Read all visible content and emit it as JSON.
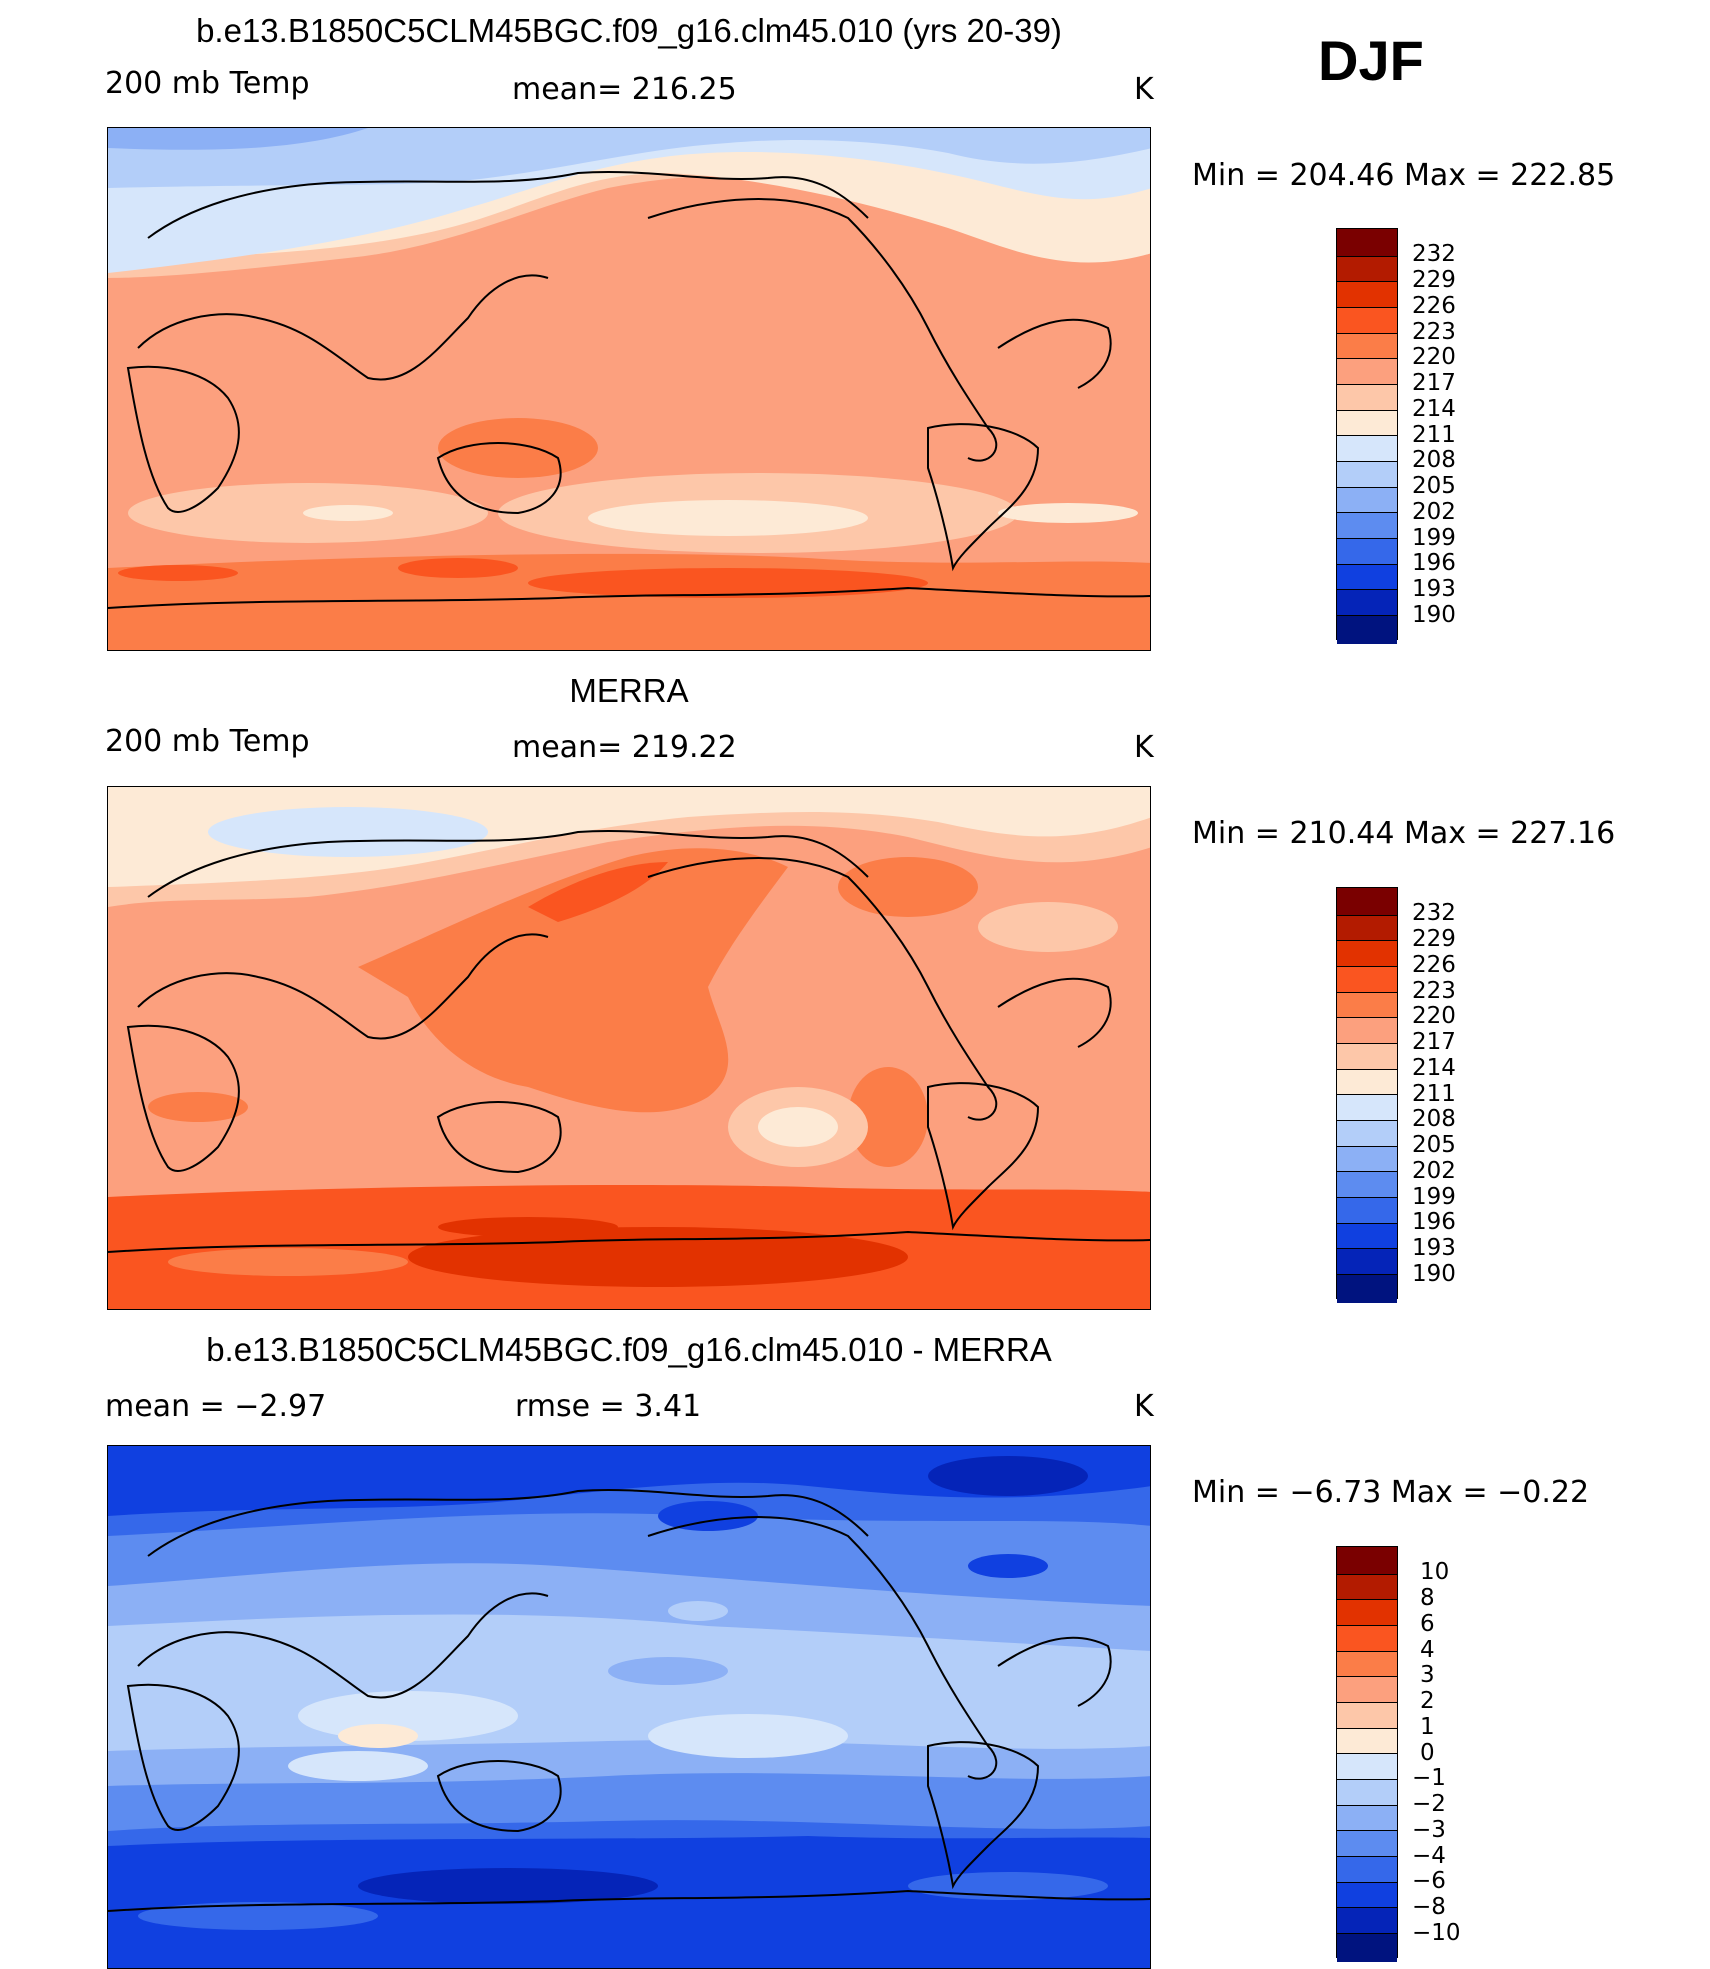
{
  "season": "DJF",
  "colors": {
    "c232": "#7a0000",
    "c229": "#b31b00",
    "c226": "#e23200",
    "c223": "#fa5520",
    "c220": "#fb7d48",
    "c217": "#fca07e",
    "c214": "#fdc7a9",
    "c211": "#fdead6",
    "c208": "#d6e6fb",
    "c205": "#b3cef9",
    "c202": "#8cb0f5",
    "c199": "#5d8cf0",
    "c196": "#3568ea",
    "c193": "#1040e0",
    "c190": "#0524b8",
    "c0": "#00137f"
  },
  "panels": [
    {
      "title": "b.e13.B1850C5CLM45BGC.f09_g16.clm45.010 (yrs 20-39)",
      "left_label": "200 mb Temp",
      "center_label": "mean= 216.25",
      "unit": "K",
      "minmax": "Min = 204.46 Max = 222.85",
      "levels": [
        "232",
        "229",
        "226",
        "223",
        "220",
        "217",
        "214",
        "211",
        "208",
        "205",
        "202",
        "199",
        "196",
        "193",
        "190"
      ]
    },
    {
      "title": "MERRA",
      "left_label": "200 mb Temp",
      "center_label": "mean= 219.22",
      "unit": "K",
      "minmax": "Min = 210.44 Max = 227.16",
      "levels": [
        "232",
        "229",
        "226",
        "223",
        "220",
        "217",
        "214",
        "211",
        "208",
        "205",
        "202",
        "199",
        "196",
        "193",
        "190"
      ]
    },
    {
      "title": "b.e13.B1850C5CLM45BGC.f09_g16.clm45.010 - MERRA",
      "left_label": "mean =   −2.97",
      "center_label": "rmse =     3.41",
      "unit": "K",
      "minmax": "Min =  −6.73 Max =  −0.22",
      "levels": [
        "10",
        "8",
        "6",
        "4",
        "3",
        "2",
        "1",
        "0",
        "−1",
        "−2",
        "−3",
        "−4",
        "−6",
        "−8",
        "−10"
      ]
    }
  ]
}
